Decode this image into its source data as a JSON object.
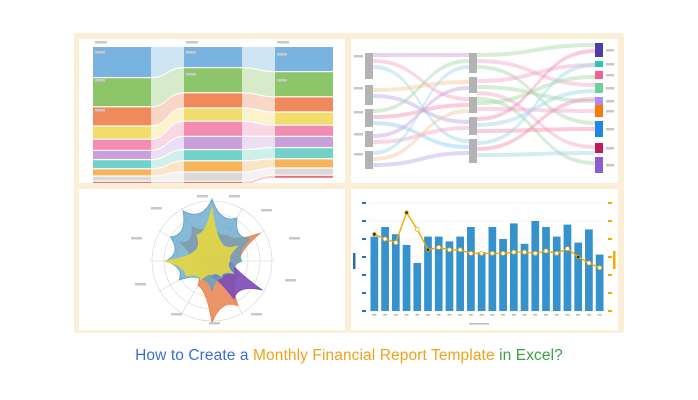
{
  "caption": {
    "part1": "How to Create a ",
    "part2": "Monthly Financial Report Template",
    "part3": " in Excel?",
    "color1": "#3b6fd6",
    "color2": "#f0a11a",
    "color3": "#3aa043"
  },
  "colors": {
    "frame": "#fbefd8",
    "alluvial": [
      "#79b4e0",
      "#8cc56a",
      "#f08a5d",
      "#f2dd6c",
      "#f28cb1",
      "#c9a0dc",
      "#72d1c8",
      "#f5b35c",
      "#d9d9d9",
      "#e57373"
    ],
    "sankey_nodes": [
      "#4b3fa3",
      "#2ec4b6",
      "#f06292",
      "#6fcf97",
      "#b388ff",
      "#f57c00",
      "#1e88e5",
      "#c2185b",
      "#8e5bd1"
    ],
    "radar": [
      "#5ea3c9",
      "#e0d548",
      "#e8824e",
      "#7b4ab8"
    ],
    "bars": "#3592cd",
    "line": "#f2a900"
  },
  "combo_chart": {
    "bar_values": [
      62,
      70,
      64,
      55,
      40,
      62,
      62,
      58,
      62,
      70,
      49,
      70,
      60,
      73,
      56,
      75,
      70,
      62,
      72,
      57,
      68,
      47
    ],
    "line_values": [
      64,
      60,
      57,
      82,
      68,
      51,
      53,
      51,
      51,
      48,
      48,
      48,
      48,
      49,
      49,
      48,
      50,
      48,
      52,
      45,
      40,
      36
    ]
  }
}
